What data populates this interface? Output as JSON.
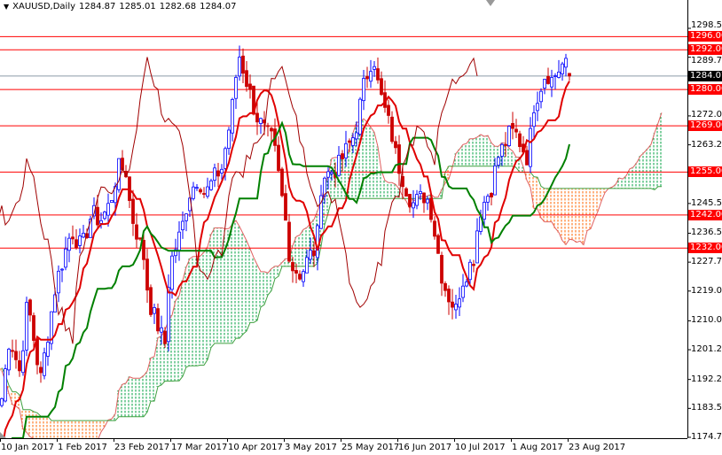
{
  "header": {
    "menu_icon": "triangle-down-icon",
    "symbol": "XAUUSD,Daily",
    "open": "1284.87",
    "high": "1285.01",
    "low": "1282.68",
    "close": "1284.07"
  },
  "chart_data": {
    "type": "candlestick",
    "symbol": "XAUUSD",
    "timeframe": "Daily",
    "indicator": "Ichimoku",
    "ylim": [
      1174.75,
      1302
    ],
    "y_ticks": [
      "1298.50",
      "1289.75",
      "1272.00",
      "1263.25",
      "1245.50",
      "1236.50",
      "1227.75",
      "1219.00",
      "1210.00",
      "1201.25",
      "1192.25",
      "1183.50",
      "1174.75"
    ],
    "x_ticks": [
      "10 Jan 2017",
      "1 Feb 2017",
      "23 Feb 2017",
      "17 Mar 2017",
      "10 Apr 2017",
      "3 May 2017",
      "25 May 2017",
      "16 Jun 2017",
      "10 Jul 2017",
      "1 Aug 2017",
      "23 Aug 2017"
    ],
    "current_price": "1284.07",
    "levels": [
      "1296.00",
      "1292.00",
      "1280.00",
      "1269.00",
      "1255.00",
      "1242.00",
      "1232.00"
    ],
    "colors": {
      "level": "#ff0000",
      "tenkan": "#e00000",
      "kijun": "#008000",
      "chikou": "#a00000",
      "cloud_bear": "#ff6600",
      "cloud_bull": "#00a040",
      "bull_candle": "#0000ff",
      "bear_candle": "#cc0000"
    },
    "close_path": [
      [
        "2017-01-10",
        1186.5
      ],
      [
        "2017-01-13",
        1205.3
      ],
      [
        "2017-01-17",
        1194.5
      ],
      [
        "2017-01-20",
        1216
      ],
      [
        "2017-01-25",
        1192
      ],
      [
        "2017-01-31",
        1221.3
      ],
      [
        "2017-02-06",
        1237.4
      ],
      [
        "2017-02-10",
        1232
      ],
      [
        "2017-02-14",
        1242.8
      ],
      [
        "2017-02-17",
        1240.1
      ],
      [
        "2017-02-21",
        1245.5
      ],
      [
        "2017-02-24",
        1256.2
      ],
      [
        "2017-02-27",
        1256
      ],
      [
        "2017-03-01",
        1242.8
      ],
      [
        "2017-03-06",
        1229.4
      ],
      [
        "2017-03-08",
        1216
      ],
      [
        "2017-03-13",
        1205.3
      ],
      [
        "2017-03-14",
        1199.9
      ],
      [
        "2017-03-16",
        1226.7
      ],
      [
        "2017-03-21",
        1237.4
      ],
      [
        "2017-03-24",
        1248.1
      ],
      [
        "2017-03-28",
        1253.5
      ],
      [
        "2017-03-31",
        1248.1
      ],
      [
        "2017-04-04",
        1253.5
      ],
      [
        "2017-04-07",
        1256.2
      ],
      [
        "2017-04-11",
        1272.2
      ],
      [
        "2017-04-14",
        1291
      ],
      [
        "2017-04-18",
        1280.3
      ],
      [
        "2017-04-21",
        1272.2
      ],
      [
        "2017-04-25",
        1266.9
      ],
      [
        "2017-04-28",
        1264.2
      ],
      [
        "2017-05-03",
        1240.1
      ],
      [
        "2017-05-05",
        1226.7
      ],
      [
        "2017-05-09",
        1224
      ],
      [
        "2017-05-12",
        1229.4
      ],
      [
        "2017-05-15",
        1232
      ],
      [
        "2017-05-17",
        1253.5
      ],
      [
        "2017-05-23",
        1256.2
      ],
      [
        "2017-05-30",
        1266.9
      ],
      [
        "2017-06-02",
        1280.3
      ],
      [
        "2017-06-06",
        1291
      ],
      [
        "2017-06-08",
        1280.3
      ],
      [
        "2017-06-13",
        1266.9
      ],
      [
        "2017-06-15",
        1258.9
      ],
      [
        "2017-06-20",
        1248.1
      ],
      [
        "2017-06-22",
        1245.5
      ],
      [
        "2017-06-27",
        1248.1
      ],
      [
        "2017-06-29",
        1245.5
      ],
      [
        "2017-07-04",
        1224
      ],
      [
        "2017-07-06",
        1218.7
      ],
      [
        "2017-07-10",
        1213.3
      ],
      [
        "2017-07-12",
        1221.3
      ],
      [
        "2017-07-17",
        1229.4
      ],
      [
        "2017-07-19",
        1242.8
      ],
      [
        "2017-07-24",
        1250.8
      ],
      [
        "2017-07-26",
        1258.9
      ],
      [
        "2017-07-31",
        1266.9
      ],
      [
        "2017-08-02",
        1266.9
      ],
      [
        "2017-08-07",
        1258.9
      ],
      [
        "2017-08-09",
        1274.9
      ],
      [
        "2017-08-14",
        1285.6
      ],
      [
        "2017-08-16",
        1282.9
      ],
      [
        "2017-08-21",
        1288.3
      ],
      [
        "2017-08-23",
        1284.07
      ]
    ]
  }
}
